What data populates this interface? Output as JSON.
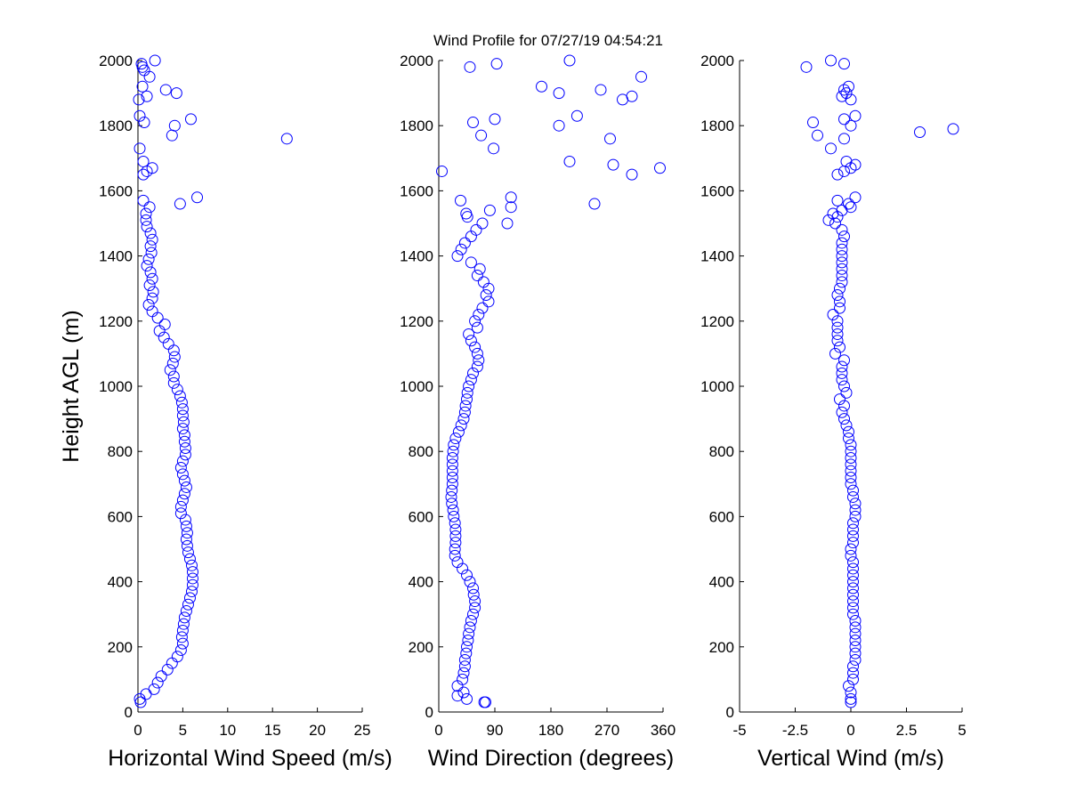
{
  "title": "Wind Profile for  07/27/19 04:54:21",
  "colors": {
    "marker": "#0000ff",
    "axis": "#000000",
    "background": "#ffffff"
  },
  "chart_data": [
    {
      "type": "scatter",
      "xlabel": "Horizontal Wind Speed (m/s)",
      "ylabel": "Height AGL (m)",
      "xlim": [
        0,
        25
      ],
      "ylim": [
        0,
        2000
      ],
      "xticks": [
        0,
        5,
        10,
        15,
        20,
        25
      ],
      "xtick_labels": [
        "0",
        "5",
        "10",
        "15",
        "20",
        "25"
      ],
      "yticks": [
        0,
        200,
        400,
        600,
        800,
        1000,
        1200,
        1400,
        1600,
        1800,
        2000
      ],
      "ytick_labels": [
        "0",
        "200",
        "400",
        "600",
        "800",
        "1000",
        "1200",
        "1400",
        "1600",
        "1800",
        "2000"
      ],
      "grid": false,
      "marker": "circle",
      "profile": [
        [
          30,
          0.3
        ],
        [
          40,
          0.2
        ],
        [
          55,
          0.9
        ],
        [
          70,
          1.8
        ],
        [
          90,
          2.2
        ],
        [
          110,
          2.6
        ],
        [
          130,
          3.3
        ],
        [
          150,
          3.8
        ],
        [
          170,
          4.4
        ],
        [
          190,
          4.8
        ],
        [
          210,
          5.0
        ],
        [
          230,
          4.9
        ],
        [
          250,
          5.0
        ],
        [
          270,
          5.1
        ],
        [
          290,
          5.2
        ],
        [
          310,
          5.4
        ],
        [
          330,
          5.6
        ],
        [
          350,
          5.8
        ],
        [
          370,
          6.0
        ],
        [
          390,
          6.1
        ],
        [
          410,
          6.1
        ],
        [
          430,
          6.1
        ],
        [
          450,
          6.0
        ],
        [
          470,
          5.8
        ],
        [
          490,
          5.6
        ],
        [
          510,
          5.5
        ],
        [
          530,
          5.4
        ],
        [
          550,
          5.5
        ],
        [
          570,
          5.4
        ],
        [
          590,
          5.3
        ],
        [
          610,
          4.8
        ],
        [
          630,
          4.8
        ],
        [
          650,
          5.0
        ],
        [
          670,
          5.2
        ],
        [
          690,
          5.4
        ],
        [
          710,
          5.2
        ],
        [
          730,
          5.0
        ],
        [
          750,
          4.8
        ],
        [
          770,
          5.0
        ],
        [
          790,
          5.3
        ],
        [
          810,
          5.3
        ],
        [
          830,
          5.2
        ],
        [
          850,
          5.2
        ],
        [
          870,
          5.0
        ],
        [
          890,
          5.1
        ],
        [
          910,
          5.0
        ],
        [
          930,
          5.0
        ],
        [
          950,
          4.9
        ],
        [
          970,
          4.7
        ],
        [
          990,
          4.4
        ],
        [
          1010,
          4.0
        ],
        [
          1030,
          4.0
        ],
        [
          1050,
          3.6
        ],
        [
          1070,
          3.9
        ],
        [
          1090,
          4.1
        ],
        [
          1110,
          4.0
        ],
        [
          1130,
          3.4
        ],
        [
          1150,
          2.9
        ],
        [
          1170,
          2.4
        ],
        [
          1190,
          3.0
        ],
        [
          1210,
          2.2
        ],
        [
          1230,
          1.6
        ],
        [
          1250,
          1.2
        ],
        [
          1270,
          1.6
        ],
        [
          1290,
          1.7
        ],
        [
          1310,
          1.3
        ],
        [
          1330,
          1.6
        ],
        [
          1350,
          1.4
        ],
        [
          1370,
          1.0
        ],
        [
          1390,
          1.2
        ],
        [
          1410,
          1.5
        ],
        [
          1430,
          1.4
        ],
        [
          1450,
          1.6
        ],
        [
          1470,
          1.4
        ],
        [
          1490,
          1.0
        ],
        [
          1510,
          0.9
        ],
        [
          1530,
          0.9
        ],
        [
          1550,
          1.3
        ]
      ],
      "scatter_points": [
        [
          1560,
          4.7
        ],
        [
          1580,
          6.6
        ],
        [
          1570,
          0.6
        ],
        [
          1650,
          0.6
        ],
        [
          1660,
          1.0
        ],
        [
          1670,
          1.6
        ],
        [
          1690,
          0.6
        ],
        [
          1760,
          16.6
        ],
        [
          1770,
          3.8
        ],
        [
          1800,
          4.1
        ],
        [
          1820,
          5.9
        ],
        [
          1810,
          0.7
        ],
        [
          1830,
          0.2
        ],
        [
          1730,
          0.2
        ],
        [
          1880,
          0.1
        ],
        [
          1890,
          1.0
        ],
        [
          1900,
          4.3
        ],
        [
          1910,
          3.1
        ],
        [
          1920,
          0.5
        ],
        [
          1950,
          1.3
        ],
        [
          1970,
          0.7
        ],
        [
          1980,
          0.5
        ],
        [
          1990,
          0.4
        ],
        [
          2000,
          1.9
        ]
      ]
    },
    {
      "type": "scatter",
      "xlabel": "Wind Direction (degrees)",
      "ylabel": "",
      "xlim": [
        0,
        360
      ],
      "ylim": [
        0,
        2000
      ],
      "xticks": [
        0,
        90,
        180,
        270,
        360
      ],
      "xtick_labels": [
        "0",
        "90",
        "180",
        "270",
        "360"
      ],
      "yticks": [
        0,
        200,
        400,
        600,
        800,
        1000,
        1200,
        1400,
        1600,
        1800,
        2000
      ],
      "ytick_labels": [
        "0",
        "200",
        "400",
        "600",
        "800",
        "1000",
        "1200",
        "1400",
        "1600",
        "1800",
        "2000"
      ],
      "grid": false,
      "marker": "circle",
      "profile": [
        [
          30,
          75
        ],
        [
          40,
          45
        ],
        [
          50,
          30
        ],
        [
          60,
          40
        ],
        [
          80,
          30
        ],
        [
          100,
          38
        ],
        [
          120,
          40
        ],
        [
          140,
          42
        ],
        [
          160,
          42
        ],
        [
          180,
          44
        ],
        [
          200,
          45
        ],
        [
          220,
          47
        ],
        [
          240,
          48
        ],
        [
          260,
          50
        ],
        [
          280,
          52
        ],
        [
          300,
          55
        ],
        [
          320,
          58
        ],
        [
          340,
          58
        ],
        [
          360,
          56
        ],
        [
          380,
          55
        ],
        [
          400,
          50
        ],
        [
          420,
          45
        ],
        [
          440,
          38
        ],
        [
          460,
          30
        ],
        [
          480,
          26
        ],
        [
          500,
          26
        ],
        [
          520,
          27
        ],
        [
          540,
          27
        ],
        [
          560,
          27
        ],
        [
          580,
          26
        ],
        [
          600,
          24
        ],
        [
          620,
          23
        ],
        [
          640,
          21
        ],
        [
          660,
          20
        ],
        [
          680,
          21
        ],
        [
          700,
          22
        ],
        [
          720,
          22
        ],
        [
          740,
          22
        ],
        [
          760,
          22
        ],
        [
          780,
          22
        ],
        [
          800,
          23
        ],
        [
          820,
          24
        ],
        [
          840,
          27
        ],
        [
          860,
          32
        ],
        [
          880,
          36
        ],
        [
          900,
          40
        ],
        [
          920,
          42
        ],
        [
          940,
          43
        ],
        [
          960,
          45
        ],
        [
          980,
          46
        ],
        [
          1000,
          48
        ],
        [
          1020,
          52
        ],
        [
          1040,
          55
        ],
        [
          1060,
          62
        ],
        [
          1080,
          64
        ],
        [
          1100,
          62
        ],
        [
          1120,
          58
        ],
        [
          1140,
          52
        ],
        [
          1160,
          48
        ],
        [
          1180,
          62
        ],
        [
          1200,
          58
        ],
        [
          1220,
          64
        ],
        [
          1240,
          70
        ],
        [
          1260,
          80
        ],
        [
          1280,
          76
        ],
        [
          1300,
          80
        ],
        [
          1320,
          72
        ],
        [
          1340,
          62
        ],
        [
          1360,
          66
        ],
        [
          1380,
          52
        ],
        [
          1400,
          30
        ],
        [
          1420,
          36
        ],
        [
          1440,
          42
        ],
        [
          1460,
          52
        ],
        [
          1480,
          60
        ],
        [
          1500,
          70
        ],
        [
          1520,
          46
        ],
        [
          1530,
          44
        ],
        [
          1540,
          82
        ],
        [
          1550,
          116
        ],
        [
          1570,
          35
        ],
        [
          1580,
          116
        ]
      ],
      "scatter_points": [
        [
          1500,
          110
        ],
        [
          1560,
          250
        ],
        [
          1650,
          310
        ],
        [
          1660,
          5
        ],
        [
          1670,
          355
        ],
        [
          1680,
          280
        ],
        [
          1690,
          210
        ],
        [
          1730,
          88
        ],
        [
          1760,
          275
        ],
        [
          1770,
          68
        ],
        [
          1800,
          193
        ],
        [
          1810,
          55
        ],
        [
          1820,
          90
        ],
        [
          1830,
          222
        ],
        [
          1880,
          295
        ],
        [
          1890,
          310
        ],
        [
          1900,
          193
        ],
        [
          1910,
          260
        ],
        [
          1920,
          165
        ],
        [
          1950,
          325
        ],
        [
          1980,
          50
        ],
        [
          1990,
          93
        ],
        [
          2000,
          210
        ],
        [
          30,
          73
        ]
      ]
    },
    {
      "type": "scatter",
      "xlabel": "Vertical Wind (m/s)",
      "ylabel": "",
      "xlim": [
        -5,
        5
      ],
      "ylim": [
        0,
        2000
      ],
      "xticks": [
        -5,
        -2.5,
        0,
        2.5,
        5
      ],
      "xtick_labels": [
        "-5",
        "-2.5",
        "0",
        "2.5",
        "5"
      ],
      "yticks": [
        0,
        200,
        400,
        600,
        800,
        1000,
        1200,
        1400,
        1600,
        1800,
        2000
      ],
      "ytick_labels": [
        "0",
        "200",
        "400",
        "600",
        "800",
        "1000",
        "1200",
        "1400",
        "1600",
        "1800",
        "2000"
      ],
      "grid": false,
      "marker": "circle",
      "profile": [
        [
          30,
          0.0
        ],
        [
          40,
          0.0
        ],
        [
          60,
          0.0
        ],
        [
          80,
          -0.1
        ],
        [
          100,
          0.1
        ],
        [
          120,
          0.1
        ],
        [
          140,
          0.1
        ],
        [
          160,
          0.2
        ],
        [
          180,
          0.2
        ],
        [
          200,
          0.2
        ],
        [
          220,
          0.2
        ],
        [
          240,
          0.2
        ],
        [
          260,
          0.2
        ],
        [
          280,
          0.2
        ],
        [
          300,
          0.1
        ],
        [
          320,
          0.1
        ],
        [
          340,
          0.1
        ],
        [
          360,
          0.1
        ],
        [
          380,
          0.1
        ],
        [
          400,
          0.1
        ],
        [
          420,
          0.1
        ],
        [
          440,
          0.1
        ],
        [
          460,
          0.1
        ],
        [
          480,
          0.0
        ],
        [
          500,
          0.0
        ],
        [
          520,
          0.1
        ],
        [
          540,
          0.1
        ],
        [
          560,
          0.1
        ],
        [
          580,
          0.1
        ],
        [
          600,
          0.2
        ],
        [
          620,
          0.2
        ],
        [
          640,
          0.2
        ],
        [
          660,
          0.1
        ],
        [
          680,
          0.1
        ],
        [
          700,
          0.0
        ],
        [
          720,
          0.0
        ],
        [
          740,
          0.0
        ],
        [
          760,
          0.0
        ],
        [
          780,
          0.0
        ],
        [
          800,
          0.0
        ],
        [
          820,
          0.0
        ],
        [
          840,
          -0.1
        ],
        [
          860,
          -0.1
        ],
        [
          880,
          -0.2
        ],
        [
          900,
          -0.3
        ],
        [
          920,
          -0.4
        ],
        [
          940,
          -0.3
        ],
        [
          960,
          -0.5
        ],
        [
          980,
          -0.2
        ],
        [
          1000,
          -0.3
        ],
        [
          1020,
          -0.4
        ],
        [
          1040,
          -0.4
        ],
        [
          1060,
          -0.4
        ],
        [
          1080,
          -0.3
        ],
        [
          1100,
          -0.7
        ],
        [
          1120,
          -0.5
        ],
        [
          1140,
          -0.6
        ],
        [
          1160,
          -0.6
        ],
        [
          1180,
          -0.6
        ],
        [
          1200,
          -0.6
        ],
        [
          1220,
          -0.8
        ],
        [
          1240,
          -0.5
        ],
        [
          1260,
          -0.5
        ],
        [
          1280,
          -0.6
        ],
        [
          1300,
          -0.5
        ],
        [
          1320,
          -0.4
        ],
        [
          1340,
          -0.4
        ],
        [
          1360,
          -0.4
        ],
        [
          1380,
          -0.4
        ],
        [
          1400,
          -0.4
        ],
        [
          1420,
          -0.4
        ],
        [
          1440,
          -0.4
        ],
        [
          1460,
          -0.3
        ],
        [
          1480,
          -0.4
        ],
        [
          1500,
          -0.7
        ],
        [
          1510,
          -1.0
        ],
        [
          1520,
          -0.6
        ],
        [
          1530,
          -0.8
        ],
        [
          1540,
          -0.4
        ],
        [
          1550,
          0.0
        ],
        [
          1560,
          -0.1
        ]
      ],
      "scatter_points": [
        [
          1570,
          -0.6
        ],
        [
          1580,
          0.2
        ],
        [
          1650,
          -0.6
        ],
        [
          1660,
          -0.3
        ],
        [
          1670,
          0.0
        ],
        [
          1680,
          0.2
        ],
        [
          1690,
          -0.2
        ],
        [
          1730,
          -0.9
        ],
        [
          1760,
          -0.3
        ],
        [
          1770,
          -1.5
        ],
        [
          1780,
          3.1
        ],
        [
          1790,
          4.6
        ],
        [
          1800,
          0.0
        ],
        [
          1810,
          -1.7
        ],
        [
          1820,
          -0.3
        ],
        [
          1830,
          0.2
        ],
        [
          1880,
          0.0
        ],
        [
          1890,
          -0.4
        ],
        [
          1900,
          -0.2
        ],
        [
          1910,
          -0.3
        ],
        [
          1920,
          -0.1
        ],
        [
          1980,
          -2.0
        ],
        [
          1990,
          -0.3
        ],
        [
          2000,
          -0.9
        ]
      ]
    }
  ]
}
